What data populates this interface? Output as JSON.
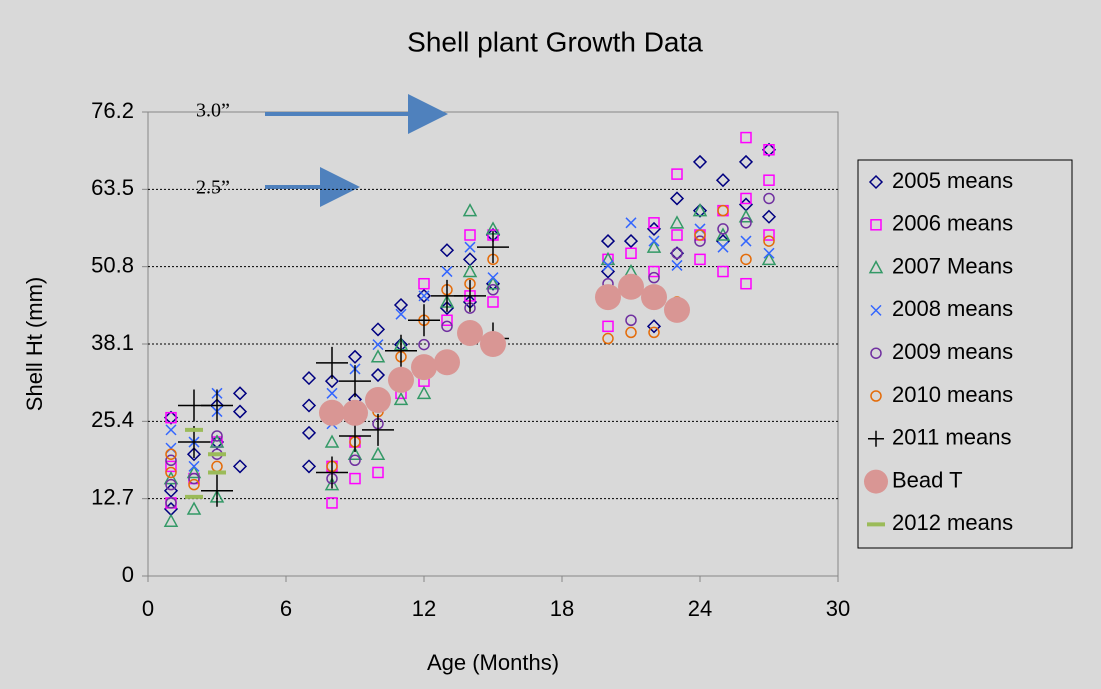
{
  "chart_data": {
    "type": "scatter",
    "title": "Shell plant Growth Data",
    "x_label": "Age (Months)",
    "y_label": "Shell Ht (mm)",
    "annotations": [
      "3.0”",
      "2.5”"
    ],
    "xlim": [
      0,
      30
    ],
    "xticks": [
      0,
      6,
      12,
      18,
      24,
      30
    ],
    "ylim": [
      0,
      76.2
    ],
    "yticks": [
      0,
      12.7,
      25.4,
      38.1,
      50.8,
      63.5,
      76.2
    ],
    "grid": true,
    "legend": "right",
    "series": [
      {
        "name": "2005 means",
        "color": "#000080",
        "marker": "diamond",
        "x": [
          1,
          1,
          1,
          2,
          3,
          3,
          4,
          4,
          4,
          7,
          7,
          7,
          7,
          8,
          8,
          9,
          9,
          10,
          10,
          11,
          11,
          12,
          13,
          13,
          14,
          14,
          15,
          15,
          20,
          20,
          21,
          22,
          22,
          23,
          23,
          24,
          24,
          25,
          25,
          26,
          26,
          27,
          27
        ],
        "values": [
          26,
          14,
          11,
          20,
          28,
          22,
          30,
          27,
          18,
          32.5,
          28,
          23.5,
          18,
          32,
          26,
          36,
          29,
          40.5,
          33,
          44.5,
          38,
          46,
          53.5,
          44,
          52,
          45,
          56,
          48,
          55,
          50,
          55,
          57,
          41,
          62,
          53,
          68,
          60,
          65,
          55,
          68,
          61,
          70,
          59
        ]
      },
      {
        "name": "2006 means",
        "color": "#ff00ff",
        "marker": "square",
        "x": [
          1,
          1,
          1,
          2,
          3,
          8,
          8,
          9,
          9,
          10,
          10,
          11,
          12,
          12,
          13,
          14,
          14,
          15,
          15,
          20,
          20,
          21,
          22,
          22,
          23,
          23,
          24,
          24,
          25,
          25,
          26,
          26,
          26,
          27,
          27,
          27
        ],
        "values": [
          26,
          18,
          12,
          16,
          22,
          12,
          18,
          16,
          22,
          17,
          28,
          30,
          48,
          32,
          42,
          56,
          46,
          56,
          45,
          41,
          52,
          53,
          58,
          50,
          56,
          66,
          56,
          52,
          60,
          50,
          72,
          62,
          48,
          70,
          65,
          56
        ]
      },
      {
        "name": "2007 Means",
        "color": "#339966",
        "marker": "triangle",
        "x": [
          1,
          1,
          2,
          2,
          3,
          3,
          8,
          8,
          9,
          9,
          10,
          10,
          11,
          11,
          12,
          13,
          14,
          14,
          15,
          15,
          20,
          21,
          22,
          23,
          24,
          25,
          26,
          27
        ],
        "values": [
          9,
          16,
          11,
          17,
          13,
          22,
          15,
          22,
          20,
          26,
          20,
          36,
          29,
          38,
          30,
          45,
          60,
          50,
          57,
          48,
          52,
          50,
          54,
          58,
          60,
          56,
          59,
          52
        ]
      },
      {
        "name": "2008 means",
        "color": "#3366ff",
        "marker": "x",
        "x": [
          1,
          1,
          2,
          2,
          3,
          3,
          8,
          8,
          9,
          10,
          11,
          12,
          13,
          14,
          15,
          20,
          21,
          22,
          23,
          24,
          25,
          26,
          27
        ],
        "values": [
          24,
          21,
          22,
          18,
          30,
          27,
          30,
          25,
          34,
          38,
          43,
          46,
          50,
          54,
          49,
          51,
          58,
          55,
          51,
          57,
          54,
          55,
          53
        ]
      },
      {
        "name": "2009 means",
        "color": "#7030a0",
        "marker": "circle",
        "x": [
          1,
          1,
          1,
          2,
          3,
          3,
          8,
          9,
          10,
          11,
          12,
          13,
          14,
          15,
          20,
          21,
          22,
          23,
          24,
          25,
          26,
          27
        ],
        "values": [
          12,
          15,
          19,
          16,
          20,
          23,
          16,
          19,
          25,
          32,
          38,
          41,
          44,
          47,
          48,
          42,
          49,
          53,
          55,
          57,
          58,
          62
        ]
      },
      {
        "name": "2010 means",
        "color": "#e46c0a",
        "marker": "circle",
        "x": [
          1,
          1,
          2,
          3,
          8,
          9,
          10,
          11,
          12,
          13,
          14,
          15,
          20,
          21,
          22,
          23,
          24,
          25,
          26,
          27
        ],
        "values": [
          17,
          20,
          15,
          18,
          18,
          22,
          27,
          36,
          42,
          47,
          48,
          52,
          39,
          40,
          40,
          45,
          56,
          60,
          52,
          55
        ]
      },
      {
        "name": "2011 means",
        "color": "#000000",
        "marker": "plus",
        "x": [
          2,
          2,
          3,
          3,
          8,
          8,
          9,
          9,
          10,
          11,
          12,
          13,
          14,
          15,
          15
        ],
        "values": [
          28,
          22,
          28,
          14,
          35,
          17,
          23,
          32,
          24,
          37,
          42,
          46,
          46,
          54,
          39
        ]
      },
      {
        "name": "Bead T",
        "color": "#d99694",
        "marker": "disc",
        "x": [
          8,
          9,
          10,
          11,
          12,
          13,
          14,
          15,
          20,
          21,
          22,
          23
        ],
        "values": [
          26.8,
          26.8,
          28.9,
          32.2,
          34.3,
          35.1,
          39.9,
          38.1,
          45.8,
          47.5,
          45.8,
          43.7
        ]
      },
      {
        "name": "2012 means",
        "color": "#9bbb59",
        "marker": "dash",
        "x": [
          2,
          2,
          3,
          3
        ],
        "values": [
          24,
          13,
          20,
          17
        ]
      }
    ]
  }
}
